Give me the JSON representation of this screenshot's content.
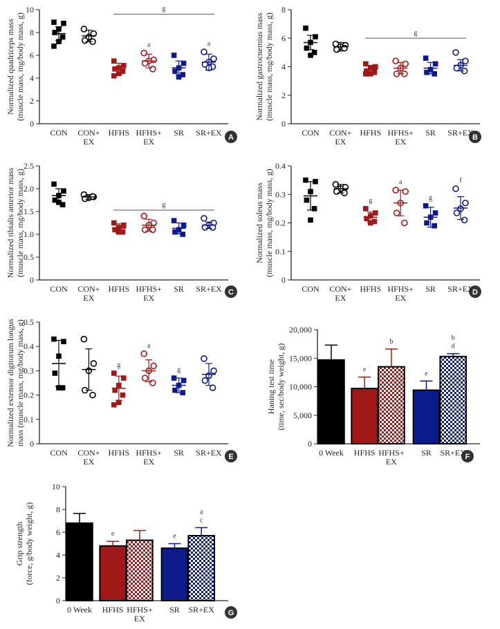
{
  "colors": {
    "black": "#000000",
    "red": "#a01818",
    "navy": "#0d1a8a",
    "axis": "#222222"
  },
  "chart_data": [
    {
      "id": "A",
      "type": "scatter",
      "badge": "A",
      "ylabel_lines": [
        "Normalized quadriceps mass",
        "(muscle mass, mg/body mass, g)"
      ],
      "ylim": [
        0,
        10
      ],
      "yticks": [
        0,
        2,
        4,
        6,
        8,
        10
      ],
      "ytick_labels": [
        "0",
        "2",
        "4",
        "6",
        "8",
        "10"
      ],
      "groups": [
        {
          "label": [
            "CON"
          ],
          "style": "black-square",
          "mean": 7.9,
          "sd": 0.6,
          "points": [
            8.9,
            8.8,
            8.3,
            8.0,
            7.6,
            7.2,
            6.8
          ],
          "sig": ""
        },
        {
          "label": [
            "CON+",
            "EX"
          ],
          "style": "black-circle",
          "mean": 7.7,
          "sd": 0.5,
          "points": [
            8.3,
            7.9,
            7.6,
            7.3,
            7.2
          ],
          "sig": ""
        },
        {
          "label": [
            "HFHS"
          ],
          "style": "red-square",
          "mean": 4.8,
          "sd": 0.5,
          "points": [
            5.5,
            5.1,
            4.9,
            4.8,
            4.6,
            4.4,
            4.2
          ],
          "sig": ""
        },
        {
          "label": [
            "HFHS+",
            "EX"
          ],
          "style": "red-circle",
          "mean": 5.5,
          "sd": 0.6,
          "points": [
            6.2,
            5.6,
            5.5,
            5.3,
            4.8
          ],
          "sig": "a"
        },
        {
          "label": [
            "SR"
          ],
          "style": "navy-square",
          "mean": 4.9,
          "sd": 0.6,
          "points": [
            6.0,
            5.3,
            4.9,
            4.6,
            4.3,
            4.1
          ],
          "sig": ""
        },
        {
          "label": [
            "SR+EX"
          ],
          "style": "navy-circle",
          "mean": 5.4,
          "sd": 0.7,
          "points": [
            6.3,
            5.7,
            5.4,
            5.2,
            5.0,
            4.9
          ],
          "sig": "a"
        }
      ],
      "bracket": {
        "from": 2,
        "to": 5,
        "y": 9.6,
        "label": "g"
      }
    },
    {
      "id": "B",
      "type": "scatter",
      "badge": "B",
      "ylabel_lines": [
        "Normalized gastrocnemius mass",
        "(muscle mass, mg/body mass, g)"
      ],
      "ylim": [
        0,
        8
      ],
      "yticks": [
        0,
        2,
        4,
        6,
        8
      ],
      "ytick_labels": [
        "0",
        "2",
        "4",
        "6",
        "8"
      ],
      "groups": [
        {
          "label": [
            "CON"
          ],
          "style": "black-square",
          "mean": 5.7,
          "sd": 0.5,
          "points": [
            6.7,
            6.1,
            5.7,
            5.3,
            5.0,
            4.8
          ],
          "sig": ""
        },
        {
          "label": [
            "CON+",
            "EX"
          ],
          "style": "black-circle",
          "mean": 5.4,
          "sd": 0.3,
          "points": [
            5.6,
            5.5,
            5.4,
            5.2,
            5.3
          ],
          "sig": ""
        },
        {
          "label": [
            "HFHS"
          ],
          "style": "red-square",
          "mean": 3.8,
          "sd": 0.3,
          "points": [
            4.2,
            4.0,
            3.9,
            3.7,
            3.6,
            3.5,
            3.5
          ],
          "sig": ""
        },
        {
          "label": [
            "HFHS+",
            "EX"
          ],
          "style": "red-circle",
          "mean": 3.9,
          "sd": 0.4,
          "points": [
            4.4,
            4.2,
            3.9,
            3.5,
            3.5
          ],
          "sig": ""
        },
        {
          "label": [
            "SR"
          ],
          "style": "navy-square",
          "mean": 3.9,
          "sd": 0.4,
          "points": [
            4.6,
            4.2,
            3.8,
            3.6,
            3.5
          ],
          "sig": ""
        },
        {
          "label": [
            "SR+EX"
          ],
          "style": "navy-circle",
          "mean": 4.1,
          "sd": 0.4,
          "points": [
            5.0,
            4.4,
            4.1,
            3.9,
            3.7
          ],
          "sig": ""
        }
      ],
      "bracket": {
        "from": 2,
        "to": 5,
        "y": 6.0,
        "label": "g"
      }
    },
    {
      "id": "C",
      "type": "scatter",
      "badge": "C",
      "ylabel_lines": [
        "Normalized tibialis anterior mass",
        "(muscle mass, mg/body mass, g)"
      ],
      "ylim": [
        0,
        2.5
      ],
      "yticks": [
        0,
        0.5,
        1.0,
        1.5,
        2.0,
        2.5
      ],
      "ytick_labels": [
        "0",
        "0.5",
        "1.0",
        "1.5",
        "2.0",
        "2.5"
      ],
      "groups": [
        {
          "label": [
            "CON"
          ],
          "style": "black-square",
          "mean": 1.85,
          "sd": 0.15,
          "points": [
            2.1,
            1.95,
            1.85,
            1.75,
            1.65,
            1.7
          ],
          "sig": ""
        },
        {
          "label": [
            "CON+",
            "EX"
          ],
          "style": "black-circle",
          "mean": 1.82,
          "sd": 0.05,
          "points": [
            1.87,
            1.82,
            1.8,
            1.78,
            1.83
          ],
          "sig": ""
        },
        {
          "label": [
            "HFHS"
          ],
          "style": "red-square",
          "mean": 1.13,
          "sd": 0.1,
          "points": [
            1.25,
            1.2,
            1.15,
            1.1,
            1.05,
            1.05
          ],
          "sig": ""
        },
        {
          "label": [
            "HFHS+",
            "EX"
          ],
          "style": "red-circle",
          "mean": 1.2,
          "sd": 0.13,
          "points": [
            1.4,
            1.25,
            1.2,
            1.1,
            1.1
          ],
          "sig": ""
        },
        {
          "label": [
            "SR"
          ],
          "style": "navy-square",
          "mean": 1.13,
          "sd": 0.12,
          "points": [
            1.3,
            1.2,
            1.1,
            1.05,
            1.0
          ],
          "sig": ""
        },
        {
          "label": [
            "SR+EX"
          ],
          "style": "navy-circle",
          "mean": 1.2,
          "sd": 0.07,
          "points": [
            1.35,
            1.25,
            1.2,
            1.15,
            1.15
          ],
          "sig": ""
        }
      ],
      "bracket": {
        "from": 2,
        "to": 5,
        "y": 1.53,
        "label": "g"
      }
    },
    {
      "id": "D",
      "type": "scatter",
      "badge": "D",
      "ylabel_lines": [
        "Normalized soleus mass",
        "(muscle mass, mg/body mass, g)"
      ],
      "ylim": [
        0,
        0.4
      ],
      "yticks": [
        0,
        0.1,
        0.2,
        0.3,
        0.4
      ],
      "ytick_labels": [
        "0",
        "0.1",
        "0.2",
        "0.3",
        "0.4"
      ],
      "groups": [
        {
          "label": [
            "CON"
          ],
          "style": "black-square",
          "mean": 0.295,
          "sd": 0.05,
          "points": [
            0.35,
            0.345,
            0.31,
            0.28,
            0.25,
            0.21
          ],
          "sig": ""
        },
        {
          "label": [
            "CON+",
            "EX"
          ],
          "style": "black-circle",
          "mean": 0.32,
          "sd": 0.015,
          "points": [
            0.335,
            0.325,
            0.32,
            0.31,
            0.305
          ],
          "sig": ""
        },
        {
          "label": [
            "HFHS"
          ],
          "style": "red-square",
          "mean": 0.22,
          "sd": 0.018,
          "points": [
            0.25,
            0.235,
            0.225,
            0.215,
            0.205,
            0.2
          ],
          "sig": "g"
        },
        {
          "label": [
            "HFHS+",
            "EX"
          ],
          "style": "red-circle",
          "mean": 0.27,
          "sd": 0.045,
          "points": [
            0.315,
            0.31,
            0.27,
            0.235,
            0.2
          ],
          "sig": "a"
        },
        {
          "label": [
            "SR"
          ],
          "style": "navy-square",
          "mean": 0.22,
          "sd": 0.035,
          "points": [
            0.26,
            0.235,
            0.22,
            0.2,
            0.19
          ],
          "sig": "g"
        },
        {
          "label": [
            "SR+EX"
          ],
          "style": "navy-circle",
          "mean": 0.252,
          "sd": 0.04,
          "points": [
            0.32,
            0.27,
            0.25,
            0.235,
            0.21
          ],
          "sig": "f"
        }
      ],
      "bracket": null
    },
    {
      "id": "E",
      "type": "scatter",
      "badge": "E",
      "ylabel_lines": [
        "Normalized extensor digitorum longus",
        "mass (muscle mass, mg/body mass, g)"
      ],
      "ylim": [
        0,
        0.5
      ],
      "yticks": [
        0,
        0.1,
        0.2,
        0.3,
        0.4,
        0.5
      ],
      "ytick_labels": [
        "0",
        "0.1",
        "0.2",
        "0.3",
        "0.4",
        "0.5"
      ],
      "groups": [
        {
          "label": [
            "CON"
          ],
          "style": "black-square",
          "mean": 0.33,
          "sd": 0.095,
          "points": [
            0.43,
            0.42,
            0.36,
            0.29,
            0.23,
            0.23
          ],
          "sig": ""
        },
        {
          "label": [
            "CON+",
            "EX"
          ],
          "style": "black-circle",
          "mean": 0.305,
          "sd": 0.085,
          "points": [
            0.43,
            0.33,
            0.3,
            0.22,
            0.2
          ],
          "sig": ""
        },
        {
          "label": [
            "HFHS"
          ],
          "style": "red-square",
          "mean": 0.228,
          "sd": 0.05,
          "points": [
            0.29,
            0.27,
            0.24,
            0.22,
            0.2,
            0.17,
            0.16
          ],
          "sig": "g"
        },
        {
          "label": [
            "HFHS+",
            "EX"
          ],
          "style": "red-circle",
          "mean": 0.3,
          "sd": 0.045,
          "points": [
            0.37,
            0.32,
            0.3,
            0.27,
            0.25
          ],
          "sig": "a"
        },
        {
          "label": [
            "SR"
          ],
          "style": "navy-square",
          "mean": 0.24,
          "sd": 0.03,
          "points": [
            0.27,
            0.26,
            0.24,
            0.22,
            0.21
          ],
          "sig": "g"
        },
        {
          "label": [
            "SR+EX"
          ],
          "style": "navy-circle",
          "mean": 0.285,
          "sd": 0.045,
          "points": [
            0.35,
            0.3,
            0.28,
            0.26,
            0.23
          ],
          "sig": ""
        }
      ],
      "bracket": null
    },
    {
      "id": "F",
      "type": "bar",
      "badge": "F",
      "ylabel_lines": [
        "Haning test time",
        "(time, sec/body weight, g)"
      ],
      "ylim": [
        0,
        20000
      ],
      "yticks": [
        0,
        5000,
        10000,
        15000,
        20000
      ],
      "ytick_labels": [
        "0",
        "5,000",
        "10,000",
        "15,000",
        "20,000"
      ],
      "categories": [
        "0 Week",
        "HFHS",
        "HFHS+ EX",
        "SR",
        "SR+EX"
      ],
      "category_lines": [
        [
          "0 Week"
        ],
        [
          "HFHS"
        ],
        [
          "HFHS+",
          "EX"
        ],
        [
          "SR"
        ],
        [
          "SR+EX"
        ]
      ],
      "values": [
        14700,
        9700,
        13500,
        9400,
        15300
      ],
      "errors": [
        2600,
        2000,
        3100,
        1600,
        500
      ],
      "fills": [
        "black",
        "red",
        "red-check",
        "navy",
        "navy-check"
      ],
      "sig": [
        [],
        [
          "e"
        ],
        [
          "b"
        ],
        [
          "e"
        ],
        [
          "b",
          "d"
        ]
      ]
    },
    {
      "id": "G",
      "type": "bar",
      "badge": "G",
      "ylabel_lines": [
        "Grip strength",
        "(force, g/body weight, g)"
      ],
      "ylim": [
        0,
        10
      ],
      "yticks": [
        0,
        2,
        4,
        6,
        8,
        10
      ],
      "ytick_labels": [
        "0",
        "2",
        "4",
        "6",
        "8",
        "10"
      ],
      "categories": [
        "0 Week",
        "HFHS",
        "HFHS+ EX",
        "SR",
        "SR+EX"
      ],
      "category_lines": [
        [
          "0 Week"
        ],
        [
          "HFHS"
        ],
        [
          "HFHS+",
          "EX"
        ],
        [
          "SR"
        ],
        [
          "SR+EX"
        ]
      ],
      "values": [
        6.8,
        4.8,
        5.3,
        4.6,
        5.7
      ],
      "errors": [
        0.85,
        0.4,
        0.85,
        0.4,
        0.7
      ],
      "fills": [
        "black",
        "red",
        "red-check",
        "navy",
        "navy-check"
      ],
      "sig": [
        [],
        [
          "e"
        ],
        [],
        [
          "e"
        ],
        [
          "a",
          "c"
        ]
      ]
    }
  ]
}
